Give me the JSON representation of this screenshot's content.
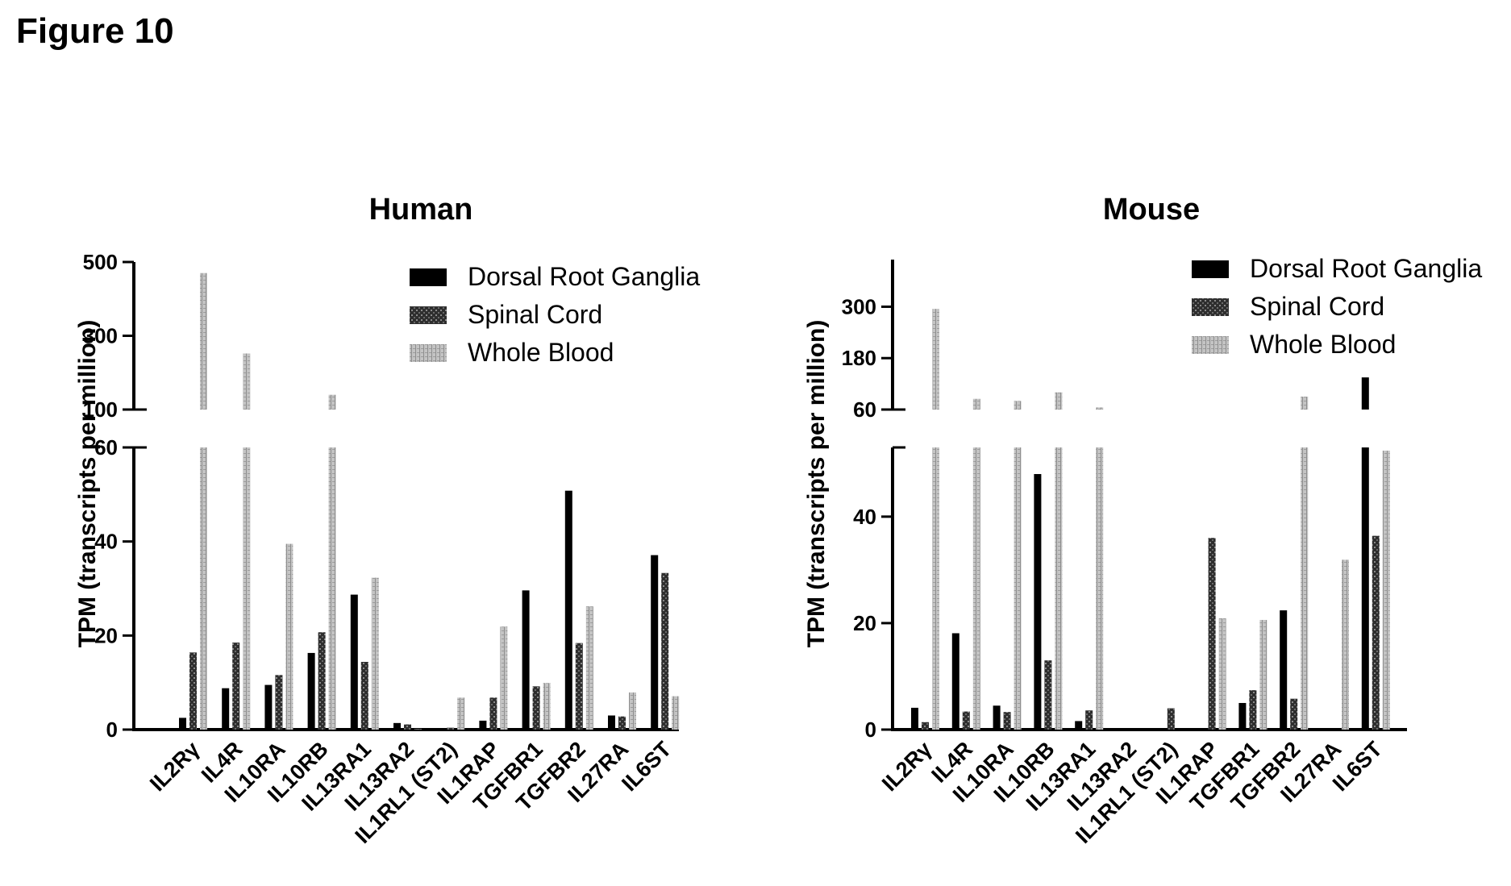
{
  "figure_title": "Figure 10",
  "colors": {
    "dorsal_root_ganglia": "#000000",
    "spinal_cord": "#3a3a3a",
    "whole_blood": "#b8b8b8"
  },
  "chart_data": [
    {
      "type": "bar",
      "title": "Human",
      "ylabel": "TPM (transcripts per million)",
      "xlabel": "",
      "categories": [
        "IL2Rγ",
        "IL4R",
        "IL10RA",
        "IL10RB",
        "IL13RA1",
        "IL13RA2",
        "IL1RL1 (ST2)",
        "IL1RAP",
        "TGFBR1",
        "TGFBR2",
        "IL27RA",
        "IL6ST"
      ],
      "axis_break": {
        "lower": [
          0,
          60
        ],
        "upper": [
          100,
          500
        ]
      },
      "lower_ticks": [
        "0",
        "20",
        "40",
        "60"
      ],
      "upper_ticks": [
        "100",
        "300",
        "500"
      ],
      "legend": [
        "Dorsal Root Ganglia",
        "Spinal  Cord",
        "Whole Blood"
      ],
      "legend_position": "top-right",
      "series": [
        {
          "name": "Dorsal Root Ganglia",
          "values": [
            2.5,
            8.8,
            9.5,
            16.3,
            28.7,
            1.4,
            0.2,
            1.9,
            29.6,
            50.8,
            3.0,
            37.1
          ]
        },
        {
          "name": "Spinal  Cord",
          "values": [
            16.4,
            18.5,
            11.6,
            20.7,
            14.4,
            1.1,
            0.4,
            6.8,
            9.2,
            18.4,
            2.8,
            33.3
          ]
        },
        {
          "name": "Whole Blood",
          "values": [
            470,
            252,
            39.5,
            140,
            32.3,
            0.1,
            6.8,
            21.9,
            9.9,
            26.2,
            7.9,
            7.1
          ]
        }
      ]
    },
    {
      "type": "bar",
      "title": "Mouse",
      "ylabel": "TPM (transcripts per million)",
      "xlabel": "",
      "categories": [
        "IL2Rγ",
        "IL4R",
        "IL10RA",
        "IL10RB",
        "IL13RA1",
        "IL13RA2",
        "IL1RL1 (ST2)",
        "IL1RAP",
        "TGFBR1",
        "TGFBR2",
        "IL27RA",
        "IL6ST"
      ],
      "axis_break": {
        "lower": [
          0,
          53
        ],
        "upper": [
          60,
          410
        ]
      },
      "lower_ticks": [
        "0",
        "20",
        "40"
      ],
      "upper_ticks": [
        "60",
        "180",
        "300"
      ],
      "legend": [
        "Dorsal Root Ganglia",
        "Spinal  Cord",
        "Whole Blood"
      ],
      "legend_position": "top-right",
      "series": [
        {
          "name": "Dorsal Root Ganglia",
          "values": [
            4.1,
            18.1,
            4.5,
            48.0,
            1.6,
            0,
            0,
            0.3,
            5.0,
            22.4,
            0,
            135
          ]
        },
        {
          "name": "Spinal  Cord",
          "values": [
            1.4,
            3.4,
            3.3,
            13.0,
            3.6,
            0,
            4.0,
            36.0,
            7.4,
            5.8,
            0,
            36.4
          ]
        },
        {
          "name": "Whole Blood",
          "values": [
            295,
            85,
            80,
            100,
            65,
            0,
            0,
            20.9,
            20.6,
            90,
            31.9,
            52.4
          ]
        }
      ]
    }
  ]
}
